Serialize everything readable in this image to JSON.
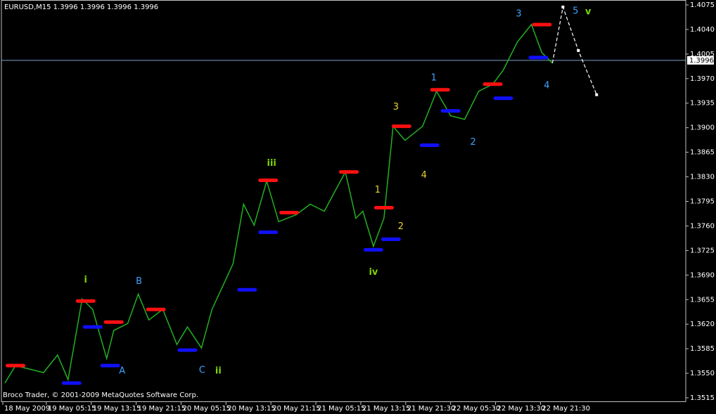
{
  "chart_data": {
    "type": "line",
    "title": "EURUSD,M15  1.3996 1.3996 1.3996 1.3996",
    "footer": "Broco Trader, © 2001-2009 MetaQuotes Software Corp.",
    "xlim": [
      0,
      487.5
    ],
    "xticks": [
      {
        "value": 1,
        "label": "18 May 2009"
      },
      {
        "value": 32,
        "label": "19 May 05:15"
      },
      {
        "value": 64,
        "label": "19 May 13:15"
      },
      {
        "value": 96,
        "label": "19 May 21:15"
      },
      {
        "value": 128,
        "label": "20 May 05:15"
      },
      {
        "value": 160,
        "label": "20 May 13:15"
      },
      {
        "value": 192,
        "label": "20 May 21:15"
      },
      {
        "value": 224,
        "label": "21 May 05:15"
      },
      {
        "value": 256,
        "label": "21 May 13:15"
      },
      {
        "value": 288,
        "label": "21 May 21:30"
      },
      {
        "value": 320,
        "label": "22 May 05:30"
      },
      {
        "value": 352,
        "label": "22 May 13:30"
      },
      {
        "value": 384,
        "label": "22 May 21:30"
      }
    ],
    "ylim": [
      1.3509,
      1.4082
    ],
    "yticks": [
      1.3515,
      {
        "value": 1.355,
        "label": "1.3550"
      },
      1.3585,
      {
        "value": 1.362,
        "label": "1.3620"
      },
      1.3655,
      {
        "value": 1.369,
        "label": "1.3690"
      },
      1.3725,
      {
        "value": 1.376,
        "label": "1.3760"
      },
      1.3795,
      {
        "value": 1.383,
        "label": "1.3830"
      },
      1.3865,
      {
        "value": 1.39,
        "label": "1.3900"
      },
      1.3935,
      {
        "value": 1.397,
        "label": "1.3970"
      },
      1.4005,
      {
        "value": 1.404,
        "label": "1.4040"
      },
      1.4075
    ],
    "current_price": 1.3996,
    "series": [
      {
        "style": "line",
        "color": "#22b022",
        "x": [
          2.5,
          10,
          20,
          30,
          40,
          47.5,
          57.5,
          65,
          75,
          80,
          90,
          97.5,
          105,
          115,
          125,
          132.5,
          142.5,
          150,
          165,
          172.5,
          180,
          189,
          197.5,
          210,
          220,
          230,
          245,
          252.5,
          257.5,
          265,
          272.5,
          279,
          287.5,
          300,
          310,
          320,
          330,
          340,
          350,
          357.5,
          367.5,
          377.5,
          385,
          392.5
        ],
        "values": [
          1.3536,
          1.3561,
          1.3556,
          1.3551,
          1.3576,
          1.3541,
          1.3656,
          1.3641,
          1.3571,
          1.3611,
          1.3621,
          1.3663,
          1.3626,
          1.3641,
          1.3591,
          1.3616,
          1.3586,
          1.3641,
          1.3706,
          1.3791,
          1.3761,
          1.3824,
          1.3766,
          1.3776,
          1.3791,
          1.3781,
          1.3837,
          1.3771,
          1.3781,
          1.3731,
          1.3771,
          1.3902,
          1.3882,
          1.3902,
          1.3952,
          1.3917,
          1.3912,
          1.3952,
          1.3962,
          1.3982,
          1.4022,
          1.4047,
          1.4007,
          1.3992
        ]
      },
      {
        "style": "dash",
        "color": "#ff1010",
        "x": [
          10,
          60,
          80,
          110,
          190,
          205,
          247.5,
          272.5,
          285,
          312.5,
          350,
          385
        ],
        "values": [
          1.3561,
          1.3653,
          1.3623,
          1.3641,
          1.3825,
          1.3779,
          1.3837,
          1.3786,
          1.3902,
          1.3954,
          1.3962,
          1.4047
        ]
      },
      {
        "style": "dash",
        "color": "#1010ff",
        "x": [
          50,
          65,
          77.5,
          132.5,
          175,
          190,
          265,
          277.5,
          305,
          320,
          357.5,
          382.5
        ],
        "values": [
          1.3536,
          1.3616,
          1.3561,
          1.3583,
          1.3669,
          1.3751,
          1.3726,
          1.3741,
          1.3875,
          1.3924,
          1.3942,
          1.4
        ]
      },
      {
        "style": "dashed",
        "color": "#ffffff",
        "x": [
          392.5,
          400,
          411,
          424
        ],
        "values": [
          1.3992,
          1.4072,
          1.401,
          1.3947
        ]
      }
    ],
    "annotations": [
      {
        "text": "i",
        "x": 60,
        "y": 1.3683,
        "color": "#7fd400"
      },
      {
        "text": "B",
        "x": 98,
        "y": 1.3681,
        "color": "#3fa0ff"
      },
      {
        "text": "A",
        "x": 86,
        "y": 1.3553,
        "color": "#3fa0ff"
      },
      {
        "text": "C",
        "x": 143,
        "y": 1.3554,
        "color": "#3fa0ff"
      },
      {
        "text": "ii",
        "x": 154.5,
        "y": 1.3553,
        "color": "#7fd400"
      },
      {
        "text": "iii",
        "x": 192.5,
        "y": 1.3849,
        "color": "#7fd400"
      },
      {
        "text": "iv",
        "x": 265,
        "y": 1.3694,
        "color": "#7fd400"
      },
      {
        "text": "1",
        "x": 268,
        "y": 1.3811,
        "color": "#e8d030"
      },
      {
        "text": "2",
        "x": 284.5,
        "y": 1.3759,
        "color": "#e8d030"
      },
      {
        "text": "3",
        "x": 281,
        "y": 1.3929,
        "color": "#e8d030"
      },
      {
        "text": "4",
        "x": 301,
        "y": 1.3832,
        "color": "#e8d030"
      },
      {
        "text": "1",
        "x": 308,
        "y": 1.3971,
        "color": "#3fa0ff"
      },
      {
        "text": "2",
        "x": 336,
        "y": 1.3879,
        "color": "#3fa0ff"
      },
      {
        "text": "3",
        "x": 368.5,
        "y": 1.4062,
        "color": "#3fa0ff"
      },
      {
        "text": "4",
        "x": 388.5,
        "y": 1.396,
        "color": "#3fa0ff"
      },
      {
        "text": "5",
        "x": 409,
        "y": 1.4066,
        "color": "#3fa0ff"
      },
      {
        "text": "v",
        "x": 418,
        "y": 1.4065,
        "color": "#7fd400"
      }
    ]
  }
}
